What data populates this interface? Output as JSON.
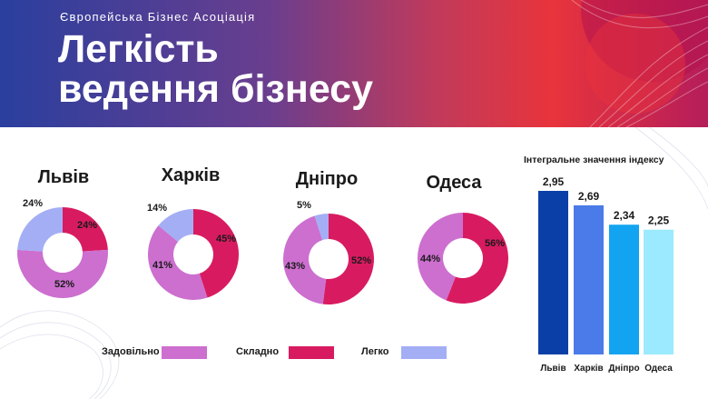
{
  "header": {
    "organization": "Європейська Бізнес Асоціація",
    "title_line1": "Легкість",
    "title_line2": "ведення бізнесу"
  },
  "colors": {
    "satisfactory": "#cc6fcf",
    "difficult": "#d81b60",
    "easy": "#a4aef5",
    "bars": [
      "#0a3fa8",
      "#4b7be8",
      "#12a4f0",
      "#9beaff"
    ]
  },
  "legend": {
    "satisfactory": "Задовільно",
    "difficult": "Складно",
    "easy": "Легко"
  },
  "chart_data": [
    {
      "type": "pie",
      "title": "Львів",
      "categories": [
        "Складно",
        "Задовільно",
        "Легко"
      ],
      "values": [
        24,
        52,
        24
      ]
    },
    {
      "type": "pie",
      "title": "Харків",
      "categories": [
        "Складно",
        "Задовільно",
        "Легко"
      ],
      "values": [
        45,
        41,
        14
      ]
    },
    {
      "type": "pie",
      "title": "Дніпро",
      "categories": [
        "Складно",
        "Задовільно",
        "Легко"
      ],
      "values": [
        52,
        43,
        5
      ]
    },
    {
      "type": "pie",
      "title": "Одеса",
      "categories": [
        "Складно",
        "Задовільно"
      ],
      "values": [
        56,
        44
      ]
    },
    {
      "type": "bar",
      "title": "Інтегральне значення індексу",
      "categories": [
        "Львів",
        "Харків",
        "Дніпро",
        "Одеса"
      ],
      "values": [
        2.95,
        2.69,
        2.34,
        2.25
      ],
      "value_labels": [
        "2,95",
        "2,69",
        "2,34",
        "2,25"
      ]
    }
  ]
}
